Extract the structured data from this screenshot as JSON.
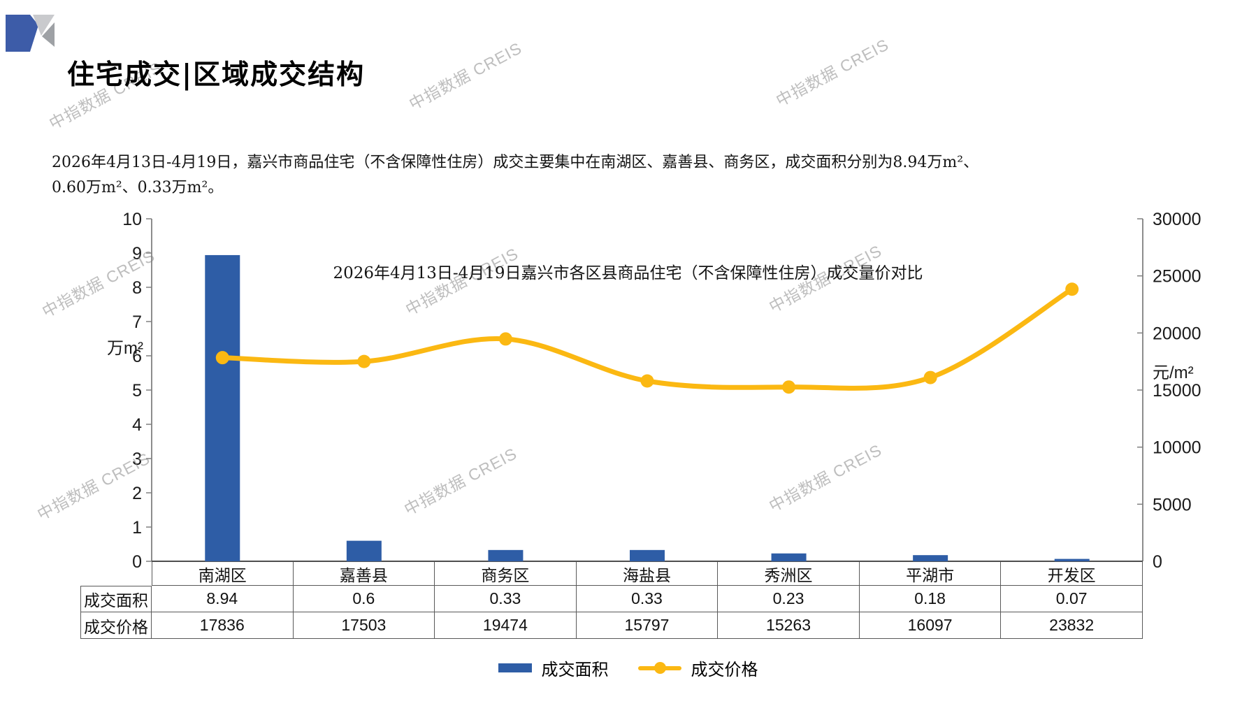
{
  "header": {
    "title": "住宅成交|区域成交结构"
  },
  "summary": {
    "line1": "2026年4月13日-4月19日，嘉兴市商品住宅（不含保障性住房）成交主要集中在南湖区、嘉善县、商务区，成交面积分别为8.94万m²、",
    "line2": "0.60万m²、0.33万m²。"
  },
  "watermark": {
    "text": "中指数据 CREIS"
  },
  "chart_data": {
    "type": "bar+line",
    "title": "2026年4月13日-4月19日嘉兴市各区县商品住宅（不含保障性住房）成交量价对比",
    "categories": [
      "南湖区",
      "嘉善县",
      "商务区",
      "海盐县",
      "秀洲区",
      "平湖市",
      "开发区"
    ],
    "series": [
      {
        "name": "成交面积",
        "type": "bar",
        "axis": "left",
        "values": [
          8.94,
          0.6,
          0.33,
          0.33,
          0.23,
          0.18,
          0.07
        ]
      },
      {
        "name": "成交价格",
        "type": "line",
        "axis": "right",
        "values": [
          17836,
          17503,
          19474,
          15797,
          15263,
          16097,
          23832
        ]
      }
    ],
    "left_axis": {
      "unit": "万m²",
      "min": 0,
      "max": 10,
      "step": 1
    },
    "right_axis": {
      "unit": "元/m²",
      "min": 0,
      "max": 30000,
      "step": 5000
    },
    "grid": false,
    "legend_position": "bottom"
  },
  "table": {
    "row_labels": [
      "成交面积",
      "成交价格"
    ]
  },
  "legend": {
    "area_label": "成交面积",
    "price_label": "成交价格"
  },
  "colors": {
    "bar": "#2E5DA6",
    "line": "#FBB812",
    "axis": "#808080",
    "x_axis": "#404040",
    "label": "#1a1a1a",
    "logo_blue": "#3D5CA8",
    "logo_gray_light": "#C9CACD",
    "logo_gray_dark": "#9EA1A5"
  }
}
